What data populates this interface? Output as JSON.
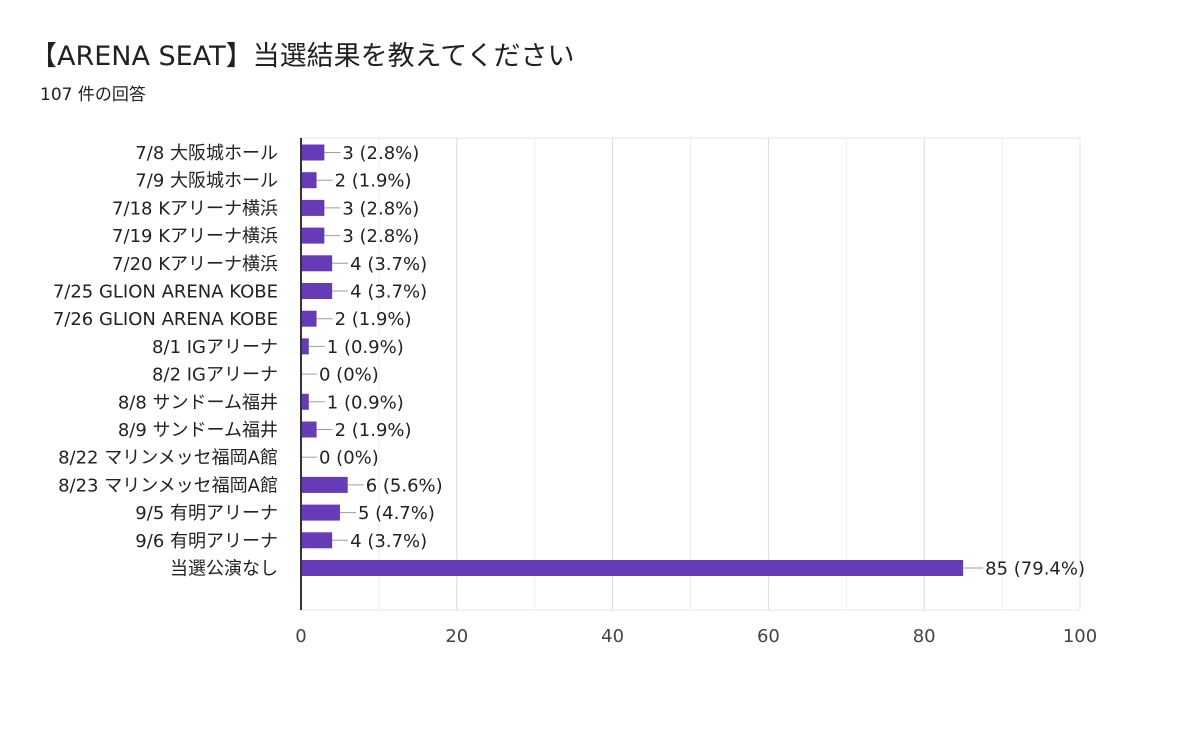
{
  "header": {
    "title": "【ARENA SEAT】当選結果を教えてください",
    "response_count": "107 件の回答"
  },
  "chart_data": {
    "type": "bar",
    "orientation": "horizontal",
    "categories": [
      "7/8 大阪城ホール",
      "7/9 大阪城ホール",
      "7/18 Kアリーナ横浜",
      "7/19 Kアリーナ横浜",
      "7/20 Kアリーナ横浜",
      "7/25 GLION ARENA KOBE",
      "7/26 GLION ARENA KOBE",
      "8/1 IGアリーナ",
      "8/2 IGアリーナ",
      "8/8 サンドーム福井",
      "8/9 サンドーム福井",
      "8/22 マリンメッセ福岡A館",
      "8/23 マリンメッセ福岡A館",
      "9/5 有明アリーナ",
      "9/6 有明アリーナ",
      "当選公演なし"
    ],
    "values": [
      3,
      2,
      3,
      3,
      4,
      4,
      2,
      1,
      0,
      1,
      2,
      0,
      6,
      5,
      4,
      85
    ],
    "value_labels": [
      "3 (2.8%)",
      "2 (1.9%)",
      "3 (2.8%)",
      "3 (2.8%)",
      "4 (3.7%)",
      "4 (3.7%)",
      "2 (1.9%)",
      "1 (0.9%)",
      "0 (0%)",
      "1 (0.9%)",
      "2 (1.9%)",
      "0 (0%)",
      "6 (5.6%)",
      "5 (4.7%)",
      "4 (3.7%)",
      "85 (79.4%)"
    ],
    "xlim": [
      0,
      100
    ],
    "xticks": [
      0,
      20,
      40,
      60,
      80,
      100
    ],
    "grid": true,
    "bar_color": "#673ab7"
  }
}
